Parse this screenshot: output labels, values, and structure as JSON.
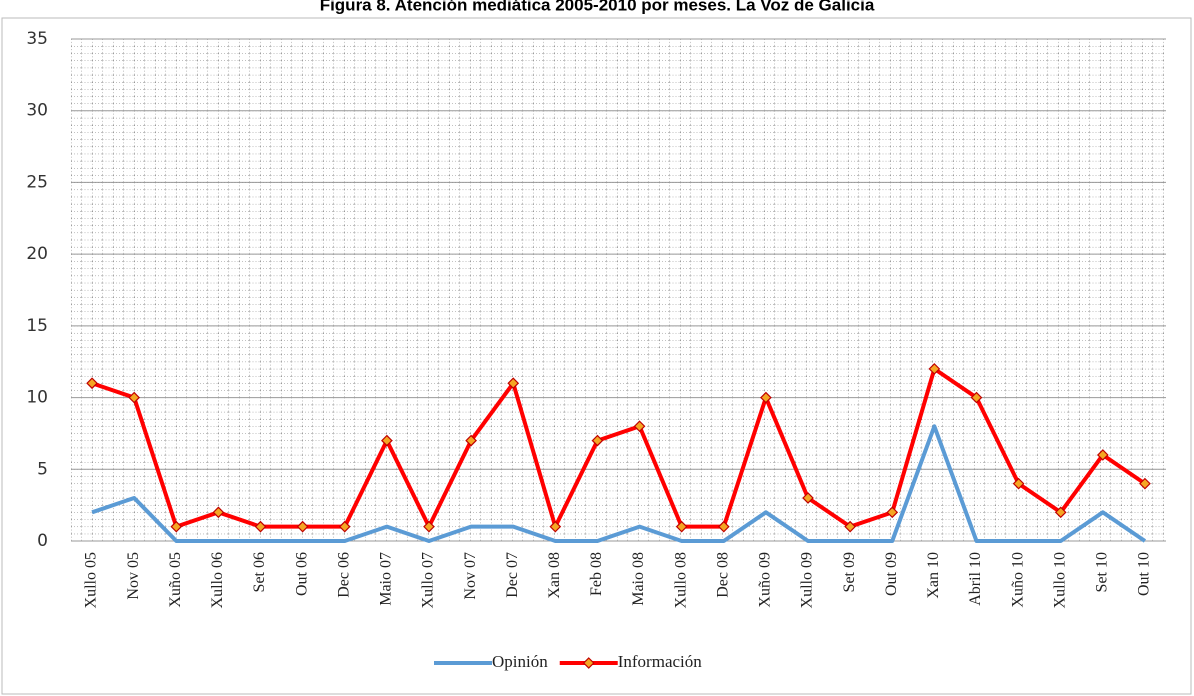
{
  "chart_data": {
    "type": "line",
    "title": "Figura 8. Atención mediática 2005-2010 por meses. La Voz de Galicia",
    "categories": [
      "Xullo 05",
      "Nov 05",
      "Xuño 05",
      "Xullo 06",
      "Set 06",
      "Out 06",
      "Dec 06",
      "Maio 07",
      "Xullo 07",
      "Nov 07",
      "Dec 07",
      "Xan 08",
      "Feb 08",
      "Maio 08",
      "Xullo 08",
      "Dec 08",
      "Xuño 09",
      "Xullo 09",
      "Set 09",
      "Out 09",
      "Xan 10",
      "Abril 10",
      "Xuño 10",
      "Xullo 10",
      "Set 10",
      "Out 10"
    ],
    "series": [
      {
        "name": "Opinión",
        "color": "#5b9bd5",
        "values": [
          2,
          3,
          0,
          0,
          0,
          0,
          0,
          1,
          0,
          1,
          1,
          0,
          0,
          1,
          0,
          0,
          2,
          0,
          0,
          0,
          8,
          0,
          0,
          0,
          2,
          0
        ]
      },
      {
        "name": "Información",
        "color": "#ff0000",
        "marker": "diamond",
        "values": [
          11,
          10,
          1,
          2,
          1,
          1,
          1,
          7,
          1,
          7,
          11,
          1,
          7,
          8,
          1,
          1,
          10,
          3,
          1,
          2,
          12,
          10,
          4,
          2,
          6,
          4
        ]
      }
    ],
    "ylim": [
      0,
      35
    ],
    "yticks": [
      0,
      5,
      10,
      15,
      20,
      25,
      30,
      35
    ],
    "grid": true,
    "legend": "bottom"
  }
}
